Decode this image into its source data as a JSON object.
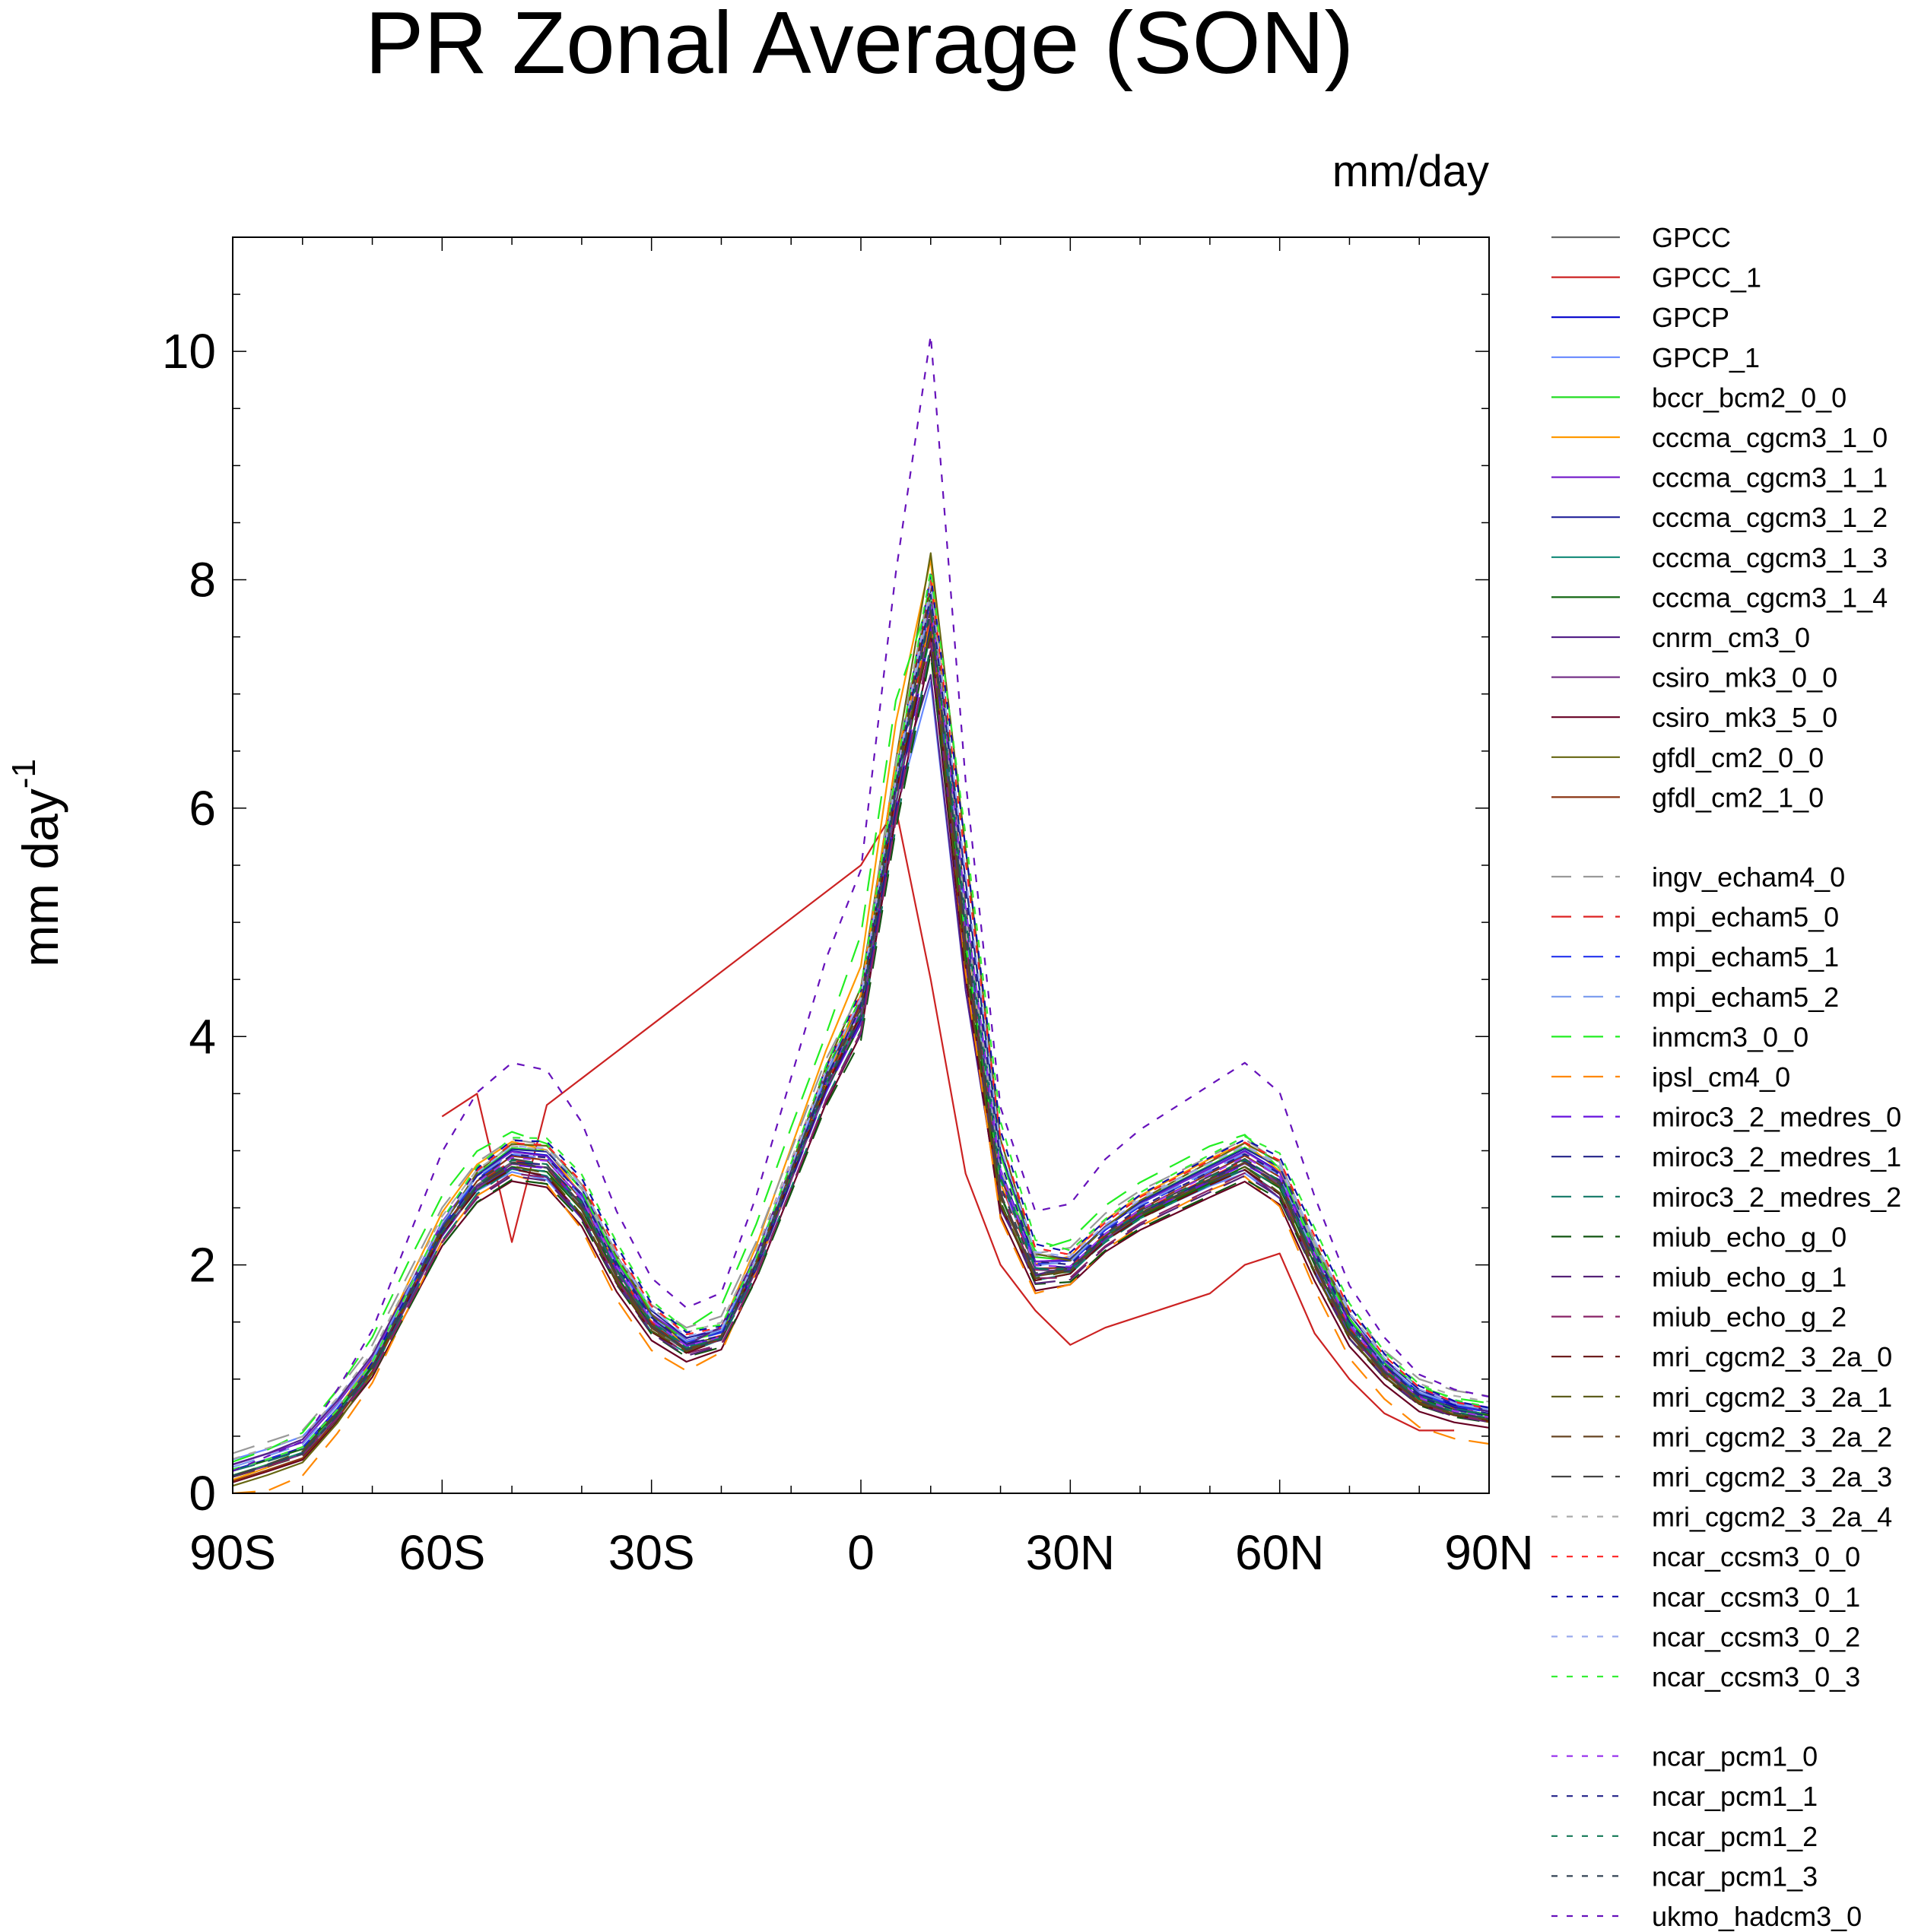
{
  "chart_data": {
    "type": "line",
    "title": "PR Zonal Average (SON)",
    "units": "mm/day",
    "ylabel": "mm day",
    "ylabel_superscript": "-1",
    "ylim": [
      0,
      11
    ],
    "xlim": [
      -90,
      90
    ],
    "yticks": [
      {
        "value": 0,
        "label": "0"
      },
      {
        "value": 2,
        "label": "2"
      },
      {
        "value": 4,
        "label": "4"
      },
      {
        "value": 6,
        "label": "6"
      },
      {
        "value": 8,
        "label": "8"
      },
      {
        "value": 10,
        "label": "10"
      }
    ],
    "xticks": [
      {
        "value": -90,
        "label": "90S"
      },
      {
        "value": -60,
        "label": "60S"
      },
      {
        "value": -30,
        "label": "30S"
      },
      {
        "value": 0,
        "label": "0"
      },
      {
        "value": 30,
        "label": "30N"
      },
      {
        "value": 60,
        "label": "60N"
      },
      {
        "value": 90,
        "label": "90N"
      }
    ],
    "lat": [
      -90,
      -85,
      -80,
      -75,
      -70,
      -65,
      -60,
      -55,
      -50,
      -45,
      -40,
      -35,
      -30,
      -25,
      -20,
      -15,
      -10,
      -5,
      0,
      5,
      10,
      15,
      20,
      25,
      30,
      35,
      40,
      45,
      50,
      55,
      60,
      65,
      70,
      75,
      80,
      85,
      90
    ],
    "base_profile": [
      0.15,
      0.25,
      0.35,
      0.7,
      1.1,
      1.7,
      2.3,
      2.7,
      2.9,
      2.85,
      2.5,
      1.9,
      1.45,
      1.25,
      1.35,
      2.0,
      2.8,
      3.6,
      4.2,
      6.2,
      7.8,
      4.8,
      2.6,
      1.9,
      1.95,
      2.25,
      2.45,
      2.6,
      2.75,
      2.9,
      2.7,
      2.0,
      1.4,
      1.05,
      0.8,
      0.7,
      0.65
    ],
    "gpcc1_values": [
      null,
      null,
      null,
      null,
      null,
      null,
      3.3,
      3.5,
      2.2,
      3.4,
      null,
      null,
      null,
      null,
      null,
      null,
      null,
      null,
      5.5,
      6.0,
      4.5,
      2.8,
      2.0,
      1.6,
      1.3,
      1.45,
      1.55,
      1.65,
      1.75,
      2.0,
      2.1,
      1.4,
      1.0,
      0.7,
      0.55,
      0.55,
      null
    ],
    "series": [
      {
        "name": "GPCC",
        "color": "#666666",
        "dash": "solid",
        "scale": 1.0,
        "offset": 0.0,
        "shift": 0.0
      },
      {
        "name": "GPCC_1",
        "color": "#cc2222",
        "dash": "solid",
        "scale": 1.0,
        "offset": 0.0,
        "shift": 0.0
      },
      {
        "name": "GPCP",
        "color": "#0000cc",
        "dash": "solid",
        "scale": 1.02,
        "offset": 0.05,
        "shift": 0.3
      },
      {
        "name": "GPCP_1",
        "color": "#6688ff",
        "dash": "solid",
        "scale": 0.92,
        "offset": 0.15,
        "shift": -0.4
      },
      {
        "name": "bccr_bcm2_0_0",
        "color": "#22dd22",
        "dash": "solid",
        "scale": 1.05,
        "offset": 0.0,
        "shift": 0.5
      },
      {
        "name": "cccma_cgcm3_1_0",
        "color": "#ff9900",
        "dash": "solid",
        "scale": 1.08,
        "offset": -0.05,
        "shift": -0.3
      },
      {
        "name": "cccma_cgcm3_1_1",
        "color": "#7722cc",
        "dash": "solid",
        "scale": 1.0,
        "offset": 0.1,
        "shift": 0.2
      },
      {
        "name": "cccma_cgcm3_1_2",
        "color": "#222299",
        "dash": "solid",
        "scale": 1.03,
        "offset": 0.05,
        "shift": 0.6
      },
      {
        "name": "cccma_cgcm3_1_3",
        "color": "#118877",
        "dash": "solid",
        "scale": 0.98,
        "offset": 0.0,
        "shift": -0.2
      },
      {
        "name": "cccma_cgcm3_1_4",
        "color": "#116611",
        "dash": "solid",
        "scale": 0.97,
        "offset": 0.05,
        "shift": 0.1
      },
      {
        "name": "cnrm_cm3_0",
        "color": "#552288",
        "dash": "solid",
        "scale": 0.95,
        "offset": 0.1,
        "shift": -0.6
      },
      {
        "name": "csiro_mk3_0_0",
        "color": "#773388",
        "dash": "solid",
        "scale": 1.0,
        "offset": 0.0,
        "shift": 0.4
      },
      {
        "name": "csiro_mk3_5_0",
        "color": "#660022",
        "dash": "solid",
        "scale": 0.96,
        "offset": -0.05,
        "shift": -0.1
      },
      {
        "name": "gfdl_cm2_0_0",
        "color": "#666611",
        "dash": "solid",
        "scale": 1.1,
        "offset": -0.1,
        "shift": 0.7
      },
      {
        "name": "gfdl_cm2_1_0",
        "color": "#883311",
        "dash": "solid",
        "scale": 1.04,
        "offset": -0.05,
        "shift": 0.3
      },
      {
        "name": "ingv_echam4_0",
        "color": "#999999",
        "dash": "long",
        "scale": 1.0,
        "offset": 0.2,
        "shift": 0.0
      },
      {
        "name": "mpi_echam5_0",
        "color": "#dd2222",
        "dash": "long",
        "scale": 0.99,
        "offset": 0.05,
        "shift": 0.2
      },
      {
        "name": "mpi_echam5_1",
        "color": "#2233ee",
        "dash": "long",
        "scale": 1.01,
        "offset": 0.05,
        "shift": 0.3
      },
      {
        "name": "mpi_echam5_2",
        "color": "#7799ee",
        "dash": "long",
        "scale": 1.0,
        "offset": 0.08,
        "shift": 0.1
      },
      {
        "name": "inmcm3_0_0",
        "color": "#22ee22",
        "dash": "long",
        "scale": 1.06,
        "offset": 0.1,
        "shift": -0.8
      },
      {
        "name": "ipsl_cm4_0",
        "color": "#ff8800",
        "dash": "long",
        "scale": 1.05,
        "offset": -0.25,
        "shift": -0.5
      },
      {
        "name": "miroc3_2_medres_0",
        "color": "#6611dd",
        "dash": "long",
        "scale": 0.98,
        "offset": 0.05,
        "shift": 0.4
      },
      {
        "name": "miroc3_2_medres_1",
        "color": "#222288",
        "dash": "long",
        "scale": 0.99,
        "offset": 0.05,
        "shift": 0.5
      },
      {
        "name": "miroc3_2_medres_2",
        "color": "#117766",
        "dash": "long",
        "scale": 0.97,
        "offset": 0.05,
        "shift": 0.6
      },
      {
        "name": "miub_echo_g_0",
        "color": "#115511",
        "dash": "long",
        "scale": 0.95,
        "offset": 0.0,
        "shift": 0.2
      },
      {
        "name": "miub_echo_g_1",
        "color": "#552277",
        "dash": "long",
        "scale": 0.96,
        "offset": 0.0,
        "shift": 0.1
      },
      {
        "name": "miub_echo_g_2",
        "color": "#882266",
        "dash": "long",
        "scale": 0.97,
        "offset": 0.0,
        "shift": 0.3
      },
      {
        "name": "mri_cgcm2_3_2a_0",
        "color": "#661111",
        "dash": "long",
        "scale": 0.98,
        "offset": 0.0,
        "shift": -0.2
      },
      {
        "name": "mri_cgcm2_3_2a_1",
        "color": "#555511",
        "dash": "long",
        "scale": 0.99,
        "offset": 0.0,
        "shift": -0.3
      },
      {
        "name": "mri_cgcm2_3_2a_2",
        "color": "#664422",
        "dash": "long",
        "scale": 1.0,
        "offset": 0.0,
        "shift": -0.1
      },
      {
        "name": "mri_cgcm2_3_2a_3",
        "color": "#444444",
        "dash": "long",
        "scale": 1.01,
        "offset": 0.0,
        "shift": 0.0
      },
      {
        "name": "mri_cgcm2_3_2a_4",
        "color": "#aaaaaa",
        "dash": "short",
        "scale": 1.0,
        "offset": 0.15,
        "shift": 0.2
      },
      {
        "name": "ncar_ccsm3_0_0",
        "color": "#ff2222",
        "dash": "short",
        "scale": 1.05,
        "offset": 0.05,
        "shift": 0.7
      },
      {
        "name": "ncar_ccsm3_0_1",
        "color": "#1111aa",
        "dash": "short",
        "scale": 1.06,
        "offset": 0.05,
        "shift": 0.8
      },
      {
        "name": "ncar_ccsm3_0_2",
        "color": "#99aaee",
        "dash": "short",
        "scale": 1.04,
        "offset": 0.05,
        "shift": 0.6
      },
      {
        "name": "ncar_ccsm3_0_3",
        "color": "#33ee33",
        "dash": "short",
        "scale": 1.07,
        "offset": 0.05,
        "shift": 0.9
      },
      {
        "name": "ncar_pcm1_0",
        "color": "#9933ee",
        "dash": "short",
        "scale": 1.02,
        "offset": 0.0,
        "shift": 0.4
      },
      {
        "name": "ncar_pcm1_1",
        "color": "#222288",
        "dash": "short",
        "scale": 1.03,
        "offset": 0.0,
        "shift": 0.5
      },
      {
        "name": "ncar_pcm1_2",
        "color": "#117755",
        "dash": "short",
        "scale": 1.01,
        "offset": 0.0,
        "shift": 0.3
      },
      {
        "name": "ncar_pcm1_3",
        "color": "#334455",
        "dash": "short",
        "scale": 1.0,
        "offset": 0.0,
        "shift": 0.2
      },
      {
        "name": "ukmo_hadcm3_0",
        "color": "#6611bb",
        "dash": "short",
        "scale": 1.3,
        "offset": 0.0,
        "shift": 0.0
      }
    ]
  }
}
